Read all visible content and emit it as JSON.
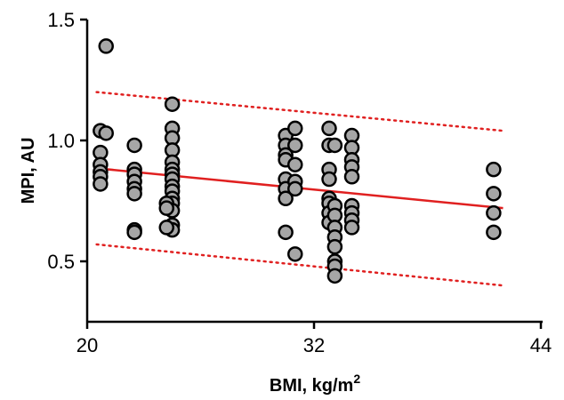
{
  "chart_data": {
    "type": "scatter",
    "title": "",
    "xlabel": "BMI, kg/m",
    "xlabel_sup": "2",
    "ylabel": "MPI, AU",
    "xlim": [
      20,
      44
    ],
    "ylim": [
      0.25,
      1.5
    ],
    "xticks": [
      20,
      32,
      44
    ],
    "xtick_labels": [
      "20",
      "32",
      "44"
    ],
    "yticks": [
      0.5,
      1.0,
      1.5
    ],
    "ytick_labels": [
      "0.5",
      "1.0",
      "1.5"
    ],
    "grid": false,
    "colors": {
      "points_fill": "#a6a6a6",
      "points_edge": "#000000",
      "fit_line": "#e02020"
    },
    "fit_line": {
      "x": [
        20.5,
        42
      ],
      "y": [
        0.885,
        0.72
      ]
    },
    "confidence_band": {
      "upper": {
        "x": [
          20.5,
          42
        ],
        "y": [
          1.2,
          1.04
        ]
      },
      "lower": {
        "x": [
          20.5,
          42
        ],
        "y": [
          0.57,
          0.4
        ]
      }
    },
    "points": [
      {
        "x": 20.7,
        "y": 1.04
      },
      {
        "x": 20.7,
        "y": 0.95
      },
      {
        "x": 20.7,
        "y": 0.9
      },
      {
        "x": 20.7,
        "y": 0.87
      },
      {
        "x": 20.7,
        "y": 0.85
      },
      {
        "x": 20.7,
        "y": 0.82
      },
      {
        "x": 21.0,
        "y": 1.39
      },
      {
        "x": 21.0,
        "y": 1.03
      },
      {
        "x": 22.5,
        "y": 0.98
      },
      {
        "x": 22.5,
        "y": 0.88
      },
      {
        "x": 22.5,
        "y": 0.86
      },
      {
        "x": 22.5,
        "y": 0.83
      },
      {
        "x": 22.5,
        "y": 0.8
      },
      {
        "x": 22.5,
        "y": 0.78
      },
      {
        "x": 22.5,
        "y": 0.63
      },
      {
        "x": 22.5,
        "y": 0.62
      },
      {
        "x": 24.5,
        "y": 1.15
      },
      {
        "x": 24.5,
        "y": 1.05
      },
      {
        "x": 24.5,
        "y": 1.01
      },
      {
        "x": 24.5,
        "y": 0.96
      },
      {
        "x": 24.5,
        "y": 0.91
      },
      {
        "x": 24.5,
        "y": 0.88
      },
      {
        "x": 24.5,
        "y": 0.86
      },
      {
        "x": 24.5,
        "y": 0.84
      },
      {
        "x": 24.5,
        "y": 0.81
      },
      {
        "x": 24.5,
        "y": 0.79
      },
      {
        "x": 24.5,
        "y": 0.76
      },
      {
        "x": 24.5,
        "y": 0.74
      },
      {
        "x": 24.5,
        "y": 0.71
      },
      {
        "x": 24.5,
        "y": 0.65
      },
      {
        "x": 24.5,
        "y": 0.63
      },
      {
        "x": 24.2,
        "y": 0.74
      },
      {
        "x": 24.2,
        "y": 0.72
      },
      {
        "x": 24.2,
        "y": 0.64
      },
      {
        "x": 30.5,
        "y": 1.02
      },
      {
        "x": 30.5,
        "y": 0.98
      },
      {
        "x": 30.5,
        "y": 0.94
      },
      {
        "x": 30.5,
        "y": 0.92
      },
      {
        "x": 30.5,
        "y": 0.84
      },
      {
        "x": 30.5,
        "y": 0.8
      },
      {
        "x": 30.5,
        "y": 0.76
      },
      {
        "x": 30.5,
        "y": 0.62
      },
      {
        "x": 31.0,
        "y": 1.05
      },
      {
        "x": 31.0,
        "y": 0.98
      },
      {
        "x": 31.0,
        "y": 0.9
      },
      {
        "x": 31.0,
        "y": 0.83
      },
      {
        "x": 31.0,
        "y": 0.8
      },
      {
        "x": 31.0,
        "y": 0.53
      },
      {
        "x": 32.8,
        "y": 1.05
      },
      {
        "x": 32.8,
        "y": 0.98
      },
      {
        "x": 32.8,
        "y": 0.88
      },
      {
        "x": 32.8,
        "y": 0.84
      },
      {
        "x": 32.8,
        "y": 0.76
      },
      {
        "x": 32.8,
        "y": 0.74
      },
      {
        "x": 32.8,
        "y": 0.7
      },
      {
        "x": 32.8,
        "y": 0.66
      },
      {
        "x": 33.1,
        "y": 0.98
      },
      {
        "x": 33.1,
        "y": 0.73
      },
      {
        "x": 33.1,
        "y": 0.69
      },
      {
        "x": 33.1,
        "y": 0.64
      },
      {
        "x": 33.1,
        "y": 0.6
      },
      {
        "x": 33.1,
        "y": 0.56
      },
      {
        "x": 33.1,
        "y": 0.5
      },
      {
        "x": 33.1,
        "y": 0.48
      },
      {
        "x": 33.1,
        "y": 0.44
      },
      {
        "x": 34.0,
        "y": 1.02
      },
      {
        "x": 34.0,
        "y": 0.97
      },
      {
        "x": 34.0,
        "y": 0.92
      },
      {
        "x": 34.0,
        "y": 0.89
      },
      {
        "x": 34.0,
        "y": 0.85
      },
      {
        "x": 34.0,
        "y": 0.73
      },
      {
        "x": 34.0,
        "y": 0.7
      },
      {
        "x": 34.0,
        "y": 0.67
      },
      {
        "x": 34.0,
        "y": 0.64
      },
      {
        "x": 41.5,
        "y": 0.88
      },
      {
        "x": 41.5,
        "y": 0.78
      },
      {
        "x": 41.5,
        "y": 0.7
      },
      {
        "x": 41.5,
        "y": 0.62
      }
    ]
  }
}
